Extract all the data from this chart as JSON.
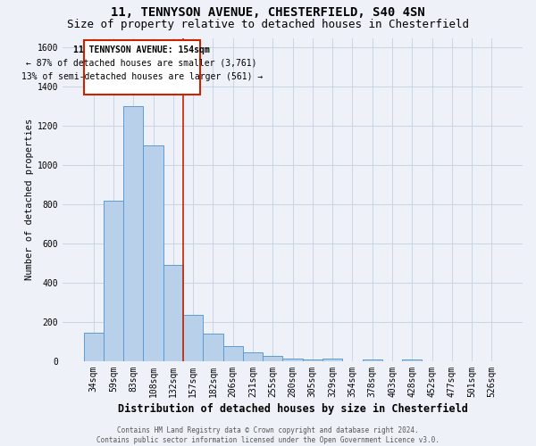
{
  "title": "11, TENNYSON AVENUE, CHESTERFIELD, S40 4SN",
  "subtitle": "Size of property relative to detached houses in Chesterfield",
  "xlabel": "Distribution of detached houses by size in Chesterfield",
  "ylabel": "Number of detached properties",
  "footer_line1": "Contains HM Land Registry data © Crown copyright and database right 2024.",
  "footer_line2": "Contains public sector information licensed under the Open Government Licence v3.0.",
  "bar_labels": [
    "34sqm",
    "59sqm",
    "83sqm",
    "108sqm",
    "132sqm",
    "157sqm",
    "182sqm",
    "206sqm",
    "231sqm",
    "255sqm",
    "280sqm",
    "305sqm",
    "329sqm",
    "354sqm",
    "378sqm",
    "403sqm",
    "428sqm",
    "452sqm",
    "477sqm",
    "501sqm",
    "526sqm"
  ],
  "bar_values": [
    145,
    820,
    1300,
    1100,
    490,
    235,
    140,
    75,
    45,
    25,
    15,
    8,
    12,
    0,
    8,
    0,
    10,
    0,
    0,
    0,
    0
  ],
  "bar_color": "#b8d0ea",
  "bar_edge_color": "#5b9bd5",
  "grid_color": "#c8d4e4",
  "background_color": "#eef2f8",
  "property_label": "11 TENNYSON AVENUE: 154sqm",
  "annotation_line1": "← 87% of detached houses are smaller (3,761)",
  "annotation_line2": "13% of semi-detached houses are larger (561) →",
  "red_line_color": "#cc2200",
  "ylim_max": 1650,
  "yticks": [
    0,
    200,
    400,
    600,
    800,
    1000,
    1200,
    1400,
    1600
  ],
  "title_fontsize": 10,
  "subtitle_fontsize": 9,
  "xlabel_fontsize": 8.5,
  "ylabel_fontsize": 7.5,
  "tick_fontsize": 7,
  "annotation_fontsize": 7,
  "footer_fontsize": 5.5
}
